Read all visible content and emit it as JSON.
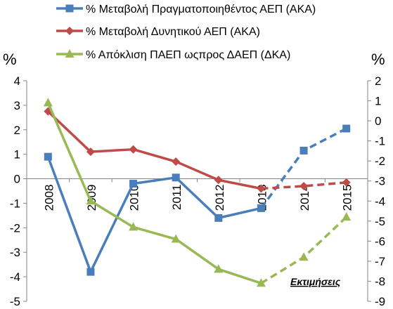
{
  "chart_data": {
    "type": "line",
    "categories": [
      "2008",
      "2009",
      "2010",
      "2011",
      "2012",
      "2013",
      "2014",
      "2015"
    ],
    "left_axis": {
      "label": "%",
      "ylim": [
        -5,
        4
      ],
      "ticks": [
        "4",
        "3",
        "2",
        "1",
        "0",
        "-1",
        "-2",
        "-3",
        "-4",
        "-5"
      ]
    },
    "right_axis": {
      "label": "%",
      "ylim": [
        -9,
        2
      ],
      "ticks": [
        "2",
        "1",
        "0",
        "-1",
        "-2",
        "-3",
        "-4",
        "-5",
        "-6",
        "-7",
        "-8",
        "-9"
      ]
    },
    "annotation": "Εκτιμήσεις",
    "estimates_from_index": 5,
    "series": [
      {
        "name": "% Μεταβολή Πραγματοποιηθέντος ΑΕΠ (ΑΚΑ)",
        "axis": "left",
        "color": "#4a7ebb",
        "marker": "square",
        "values": [
          0.9,
          -3.8,
          -0.2,
          0.05,
          -1.6,
          -1.2,
          1.15,
          2.05
        ]
      },
      {
        "name": "% Μεταβολή Δυνητικού  ΑΕΠ (ΑΚΑ)",
        "axis": "left",
        "color": "#be4b48",
        "marker": "diamond",
        "values": [
          2.75,
          1.1,
          1.2,
          0.7,
          -0.05,
          -0.4,
          -0.3,
          -0.15
        ]
      },
      {
        "name": "% Απόκλιση ΠΑΕΠ ωςπρος ΔΑΕΠ (ΔΚΑ)",
        "axis": "right",
        "color": "#98b954",
        "marker": "triangle",
        "values": [
          0.9,
          -4.0,
          -5.3,
          -5.9,
          -7.4,
          -8.1,
          -6.8,
          -4.8
        ]
      }
    ],
    "grid": false,
    "legend": "top"
  }
}
